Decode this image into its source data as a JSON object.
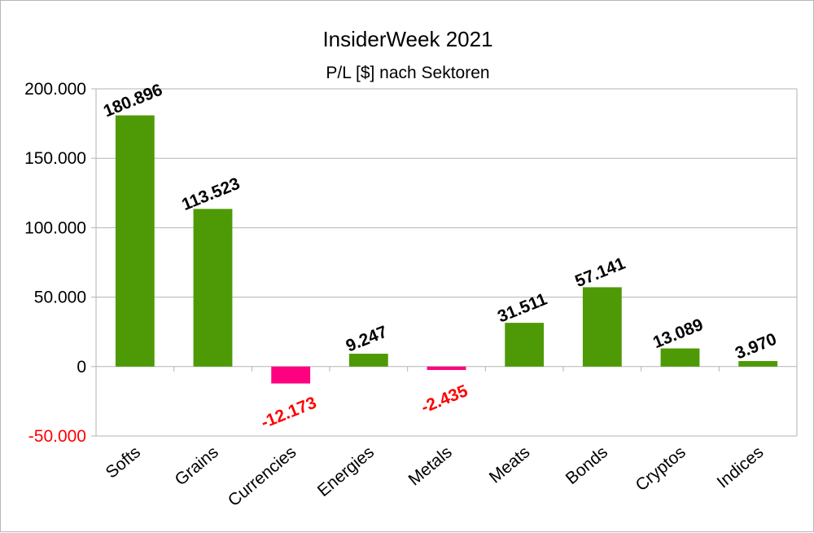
{
  "chart_data": {
    "type": "bar",
    "title": "InsiderWeek 2021",
    "subtitle": "P/L [$] nach Sektoren",
    "categories": [
      "Softs",
      "Grains",
      "Currencies",
      "Energies",
      "Metals",
      "Meats",
      "Bonds",
      "Cryptos",
      "Indices"
    ],
    "values": [
      180896,
      113523,
      -12173,
      9247,
      -2435,
      31511,
      57141,
      13089,
      3970
    ],
    "value_labels": [
      "180.896",
      "113.523",
      "-12.173",
      "9.247",
      "-2.435",
      "31.511",
      "57.141",
      "13.089",
      "3.970"
    ],
    "ylim": [
      -50000,
      200000
    ],
    "yticks": [
      200000,
      150000,
      100000,
      50000,
      0,
      -50000
    ],
    "ytick_labels": [
      "200.000",
      "150.000",
      "100.000",
      "50.000",
      "0",
      "-50.000"
    ],
    "xlabel": "",
    "ylabel": "",
    "grid": true,
    "legend": "none",
    "colors": {
      "positive_bar": "#4e9a06",
      "negative_bar": "#ff0080",
      "negative_label": "#ff0000",
      "positive_label": "#000000",
      "grid": "#b3b3b3"
    }
  }
}
